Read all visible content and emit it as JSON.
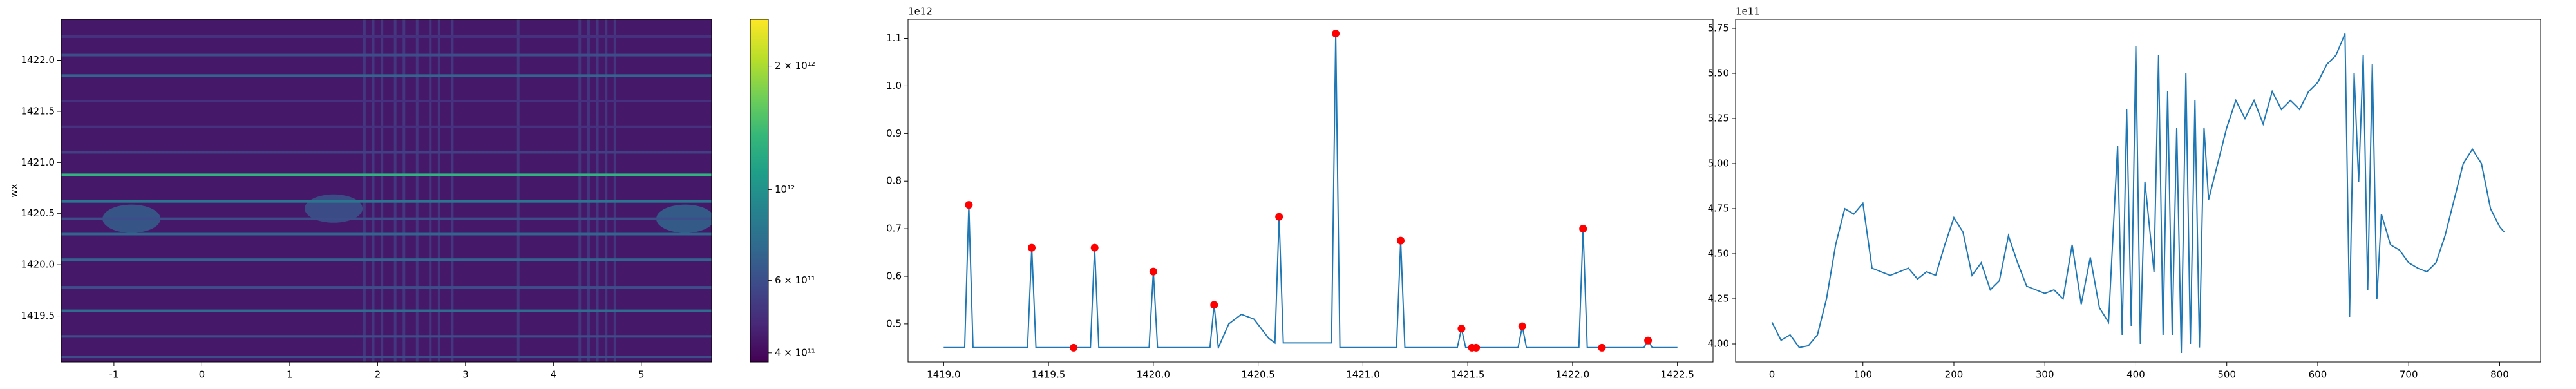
{
  "chart_data": [
    {
      "type": "heatmap",
      "ylabel": "wx",
      "xlim": [
        -1.6,
        5.8
      ],
      "ylim": [
        1419.05,
        1422.4
      ],
      "xticks": [
        -1,
        0,
        1,
        2,
        3,
        4,
        5
      ],
      "yticks": [
        1419.5,
        {
          "value": 1420,
          "label": "1420.0"
        },
        1420.5,
        {
          "value": 1421,
          "label": "1421.0"
        },
        1421.5,
        {
          "value": 1422,
          "label": "1422.0"
        }
      ],
      "background": 430000000000,
      "lines": {
        "y": [
          1422.23,
          1422.05,
          1421.85,
          1421.6,
          1421.35,
          1421.1,
          1420.88,
          1420.62,
          1420.45,
          1420.3,
          1420.05,
          1419.78,
          1419.55,
          1419.3,
          1419.1
        ],
        "values": [
          500000000000,
          600000000000,
          700000000000,
          500000000000,
          500000000000,
          550000000000,
          1300000000000,
          800000000000,
          600000000000,
          700000000000,
          700000000000,
          600000000000,
          750000000000,
          600000000000,
          600000000000
        ]
      },
      "stripes": {
        "x": [
          1.85,
          1.95,
          2.05,
          2.2,
          2.3,
          2.45,
          2.6,
          2.7,
          2.85,
          3.6,
          4.3,
          4.4,
          4.5,
          4.6,
          4.7
        ],
        "values": [
          520000000000,
          520000000000,
          520000000000,
          520000000000,
          520000000000,
          520000000000,
          520000000000,
          520000000000,
          520000000000,
          520000000000,
          520000000000,
          520000000000,
          520000000000,
          520000000000,
          520000000000
        ]
      },
      "blobs": {
        "x": [
          -0.8,
          1.5,
          5.5
        ],
        "y": [
          1420.45,
          1420.55,
          1420.45
        ],
        "values": [
          700000000000,
          650000000000,
          750000000000
        ]
      },
      "colorbar": {
        "log": true,
        "clim": [
          380000000000,
          2600000000000
        ],
        "ticks": [
          {
            "value": 400000000000,
            "label": "4 × 10¹¹"
          },
          {
            "value": 600000000000,
            "label": "6 × 10¹¹"
          },
          {
            "value": 1000000000000,
            "label": "10¹²"
          },
          {
            "value": 2000000000000,
            "label": "2 × 10¹²"
          }
        ]
      }
    },
    {
      "type": "line",
      "offset_label": "1e12",
      "xlim": [
        1418.83,
        1422.67
      ],
      "ylim": [
        0.42,
        1.14
      ],
      "xticks": [
        {
          "value": 1419,
          "label": "1419.0"
        },
        1419.5,
        {
          "value": 1420,
          "label": "1420.0"
        },
        1420.5,
        {
          "value": 1421,
          "label": "1421.0"
        },
        1421.5,
        {
          "value": 1422,
          "label": "1422.0"
        },
        1422.5
      ],
      "yticks": [
        0.5,
        0.6,
        0.7,
        0.8,
        0.9,
        {
          "value": 1,
          "label": "1.0"
        },
        1.1
      ],
      "series": [
        {
          "color": "#1f77b4",
          "x": [
            1419.0,
            1419.1,
            1419.12,
            1419.14,
            1419.4,
            1419.42,
            1419.44,
            1419.7,
            1419.72,
            1419.74,
            1419.98,
            1420.0,
            1420.02,
            1420.27,
            1420.29,
            1420.31,
            1420.36,
            1420.42,
            1420.48,
            1420.55,
            1420.58,
            1420.6,
            1420.62,
            1420.7,
            1420.85,
            1420.87,
            1420.89,
            1421.16,
            1421.18,
            1421.2,
            1421.45,
            1421.47,
            1421.49,
            1421.74,
            1421.76,
            1421.78,
            1422.03,
            1422.05,
            1422.07,
            1422.34,
            1422.36,
            1422.38,
            1422.5
          ],
          "values": [
            0.45,
            0.45,
            0.75,
            0.45,
            0.45,
            0.66,
            0.45,
            0.45,
            0.66,
            0.45,
            0.45,
            0.61,
            0.45,
            0.45,
            0.54,
            0.45,
            0.5,
            0.52,
            0.51,
            0.47,
            0.46,
            0.725,
            0.46,
            0.46,
            0.46,
            1.11,
            0.45,
            0.45,
            0.675,
            0.45,
            0.45,
            0.49,
            0.45,
            0.45,
            0.495,
            0.45,
            0.45,
            0.7,
            0.45,
            0.45,
            0.465,
            0.45,
            0.45
          ]
        }
      ],
      "markers": {
        "color": "#ff0000",
        "x": [
          1419.12,
          1419.42,
          1419.62,
          1419.72,
          1420.0,
          1420.29,
          1420.6,
          1420.87,
          1421.18,
          1421.47,
          1421.52,
          1421.54,
          1421.76,
          1422.05,
          1422.14,
          1422.36
        ],
        "values": [
          0.75,
          0.66,
          0.45,
          0.66,
          0.61,
          0.54,
          0.725,
          1.11,
          0.675,
          0.49,
          0.45,
          0.45,
          0.495,
          0.7,
          0.45,
          0.465
        ]
      }
    },
    {
      "type": "line",
      "offset_label": "1e11",
      "xlim": [
        -40,
        845
      ],
      "ylim": [
        3.9,
        5.8
      ],
      "xticks": [
        0,
        100,
        200,
        300,
        400,
        500,
        600,
        700,
        800
      ],
      "yticks": [
        {
          "value": 4,
          "label": "4.00"
        },
        4.25,
        {
          "value": 4.5,
          "label": "4.50"
        },
        4.75,
        {
          "value": 5,
          "label": "5.00"
        },
        5.25,
        {
          "value": 5.5,
          "label": "5.50"
        },
        5.75
      ],
      "series": [
        {
          "color": "#1f77b4",
          "x": [
            0,
            10,
            20,
            30,
            40,
            50,
            60,
            70,
            80,
            90,
            100,
            110,
            120,
            130,
            140,
            150,
            160,
            170,
            180,
            190,
            200,
            210,
            220,
            230,
            240,
            250,
            260,
            270,
            280,
            290,
            300,
            310,
            320,
            330,
            340,
            350,
            360,
            370,
            380,
            385,
            390,
            395,
            400,
            405,
            410,
            420,
            425,
            430,
            435,
            440,
            445,
            450,
            455,
            460,
            465,
            470,
            475,
            480,
            490,
            500,
            510,
            520,
            530,
            540,
            550,
            560,
            570,
            580,
            590,
            600,
            610,
            620,
            630,
            635,
            640,
            645,
            650,
            655,
            660,
            665,
            670,
            680,
            690,
            700,
            710,
            720,
            730,
            740,
            750,
            760,
            770,
            780,
            790,
            800,
            805
          ],
          "values": [
            4.12,
            4.02,
            4.05,
            3.98,
            3.99,
            4.05,
            4.25,
            4.55,
            4.75,
            4.72,
            4.78,
            4.42,
            4.4,
            4.38,
            4.4,
            4.42,
            4.36,
            4.4,
            4.38,
            4.55,
            4.7,
            4.62,
            4.38,
            4.45,
            4.3,
            4.35,
            4.6,
            4.45,
            4.32,
            4.3,
            4.28,
            4.3,
            4.25,
            4.55,
            4.22,
            4.48,
            4.2,
            4.12,
            5.1,
            4.05,
            5.3,
            4.1,
            5.65,
            4.0,
            4.9,
            4.4,
            5.6,
            4.05,
            5.4,
            4.05,
            5.2,
            3.95,
            5.5,
            4.0,
            5.35,
            3.98,
            5.2,
            4.8,
            5.0,
            5.2,
            5.35,
            5.25,
            5.35,
            5.22,
            5.4,
            5.3,
            5.35,
            5.3,
            5.4,
            5.45,
            5.55,
            5.6,
            5.72,
            4.15,
            5.5,
            4.9,
            5.6,
            4.3,
            5.55,
            4.25,
            4.72,
            4.55,
            4.52,
            4.45,
            4.42,
            4.4,
            4.45,
            4.6,
            4.8,
            5.0,
            5.08,
            5.0,
            4.75,
            4.65,
            4.62
          ]
        }
      ]
    }
  ]
}
